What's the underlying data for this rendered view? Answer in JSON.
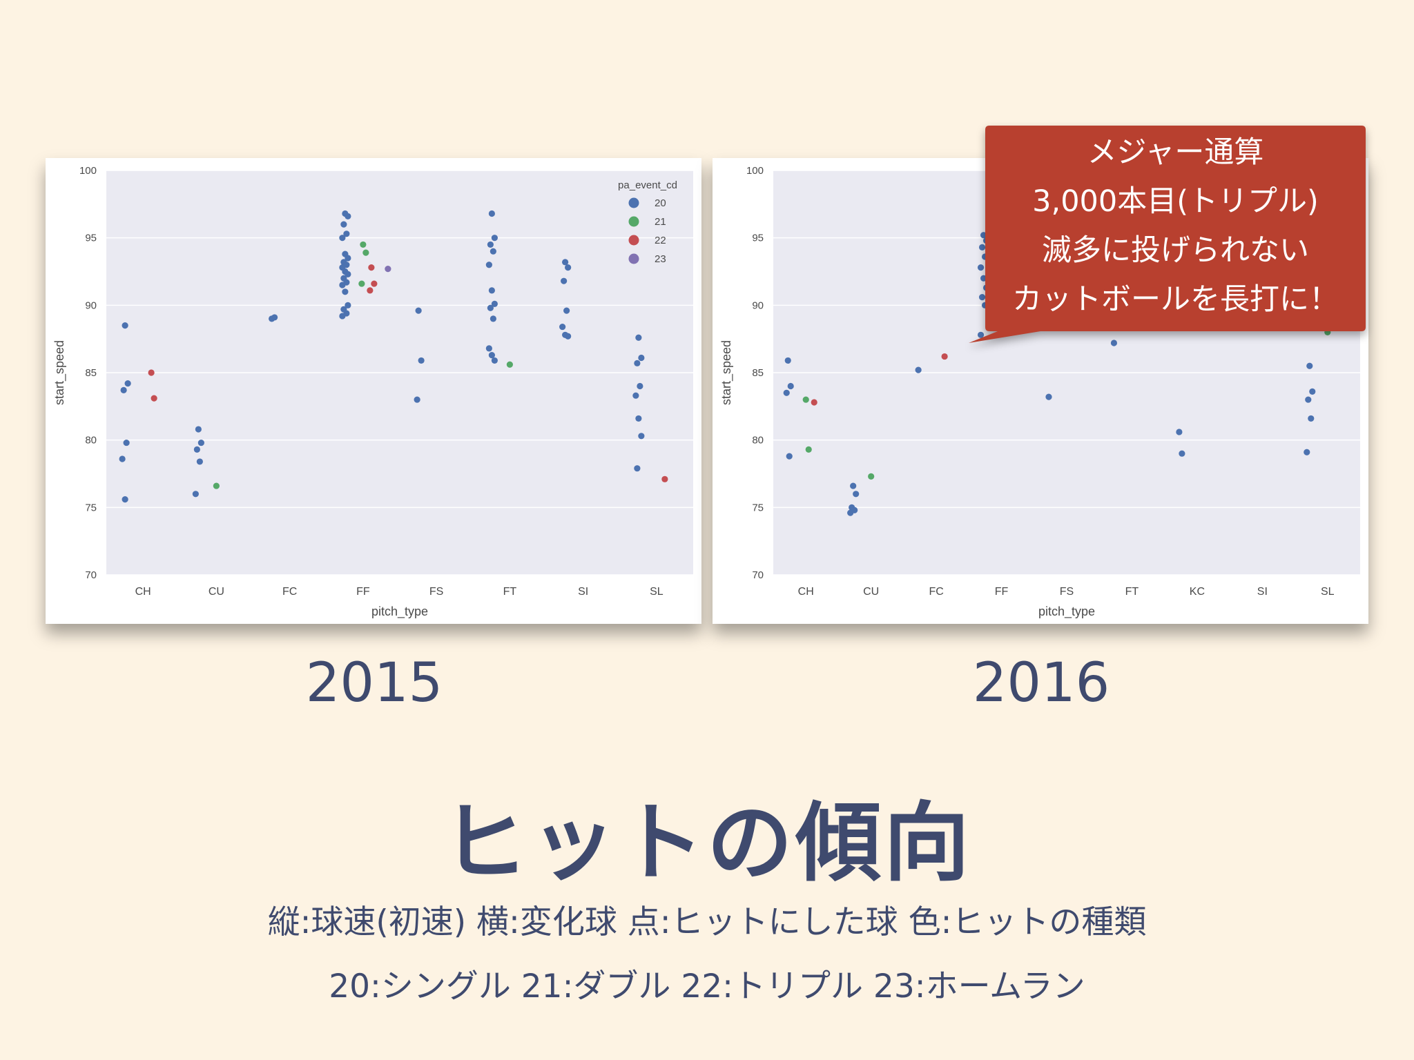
{
  "slide": {
    "title": "ヒットの傾向",
    "note_line1": "縦:球速(初速) 横:変化球 点:ヒットにした球 色:ヒットの種類",
    "note_line2": "20:シングル 21:ダブル 22:トリプル 23:ホームラン",
    "callout_lines": [
      "メジャー通算",
      "3,000本目(トリプル)",
      "滅多に投げられない",
      "カットボールを長打に！"
    ],
    "callout_color": "#b8402f"
  },
  "colors": {
    "20": "#4c72b0",
    "21": "#55a868",
    "22": "#c44e52",
    "23": "#8172b2",
    "plot_bg": "#eaeaf2",
    "grid": "#ffffff"
  },
  "chart_data": [
    {
      "type": "scatter",
      "caption": "2015",
      "xlabel": "pitch_type",
      "ylabel": "start_speed",
      "ylim": [
        70,
        100
      ],
      "yticks": [
        70,
        75,
        80,
        85,
        90,
        95,
        100
      ],
      "categories": [
        "CH",
        "CU",
        "FC",
        "FF",
        "FS",
        "FT",
        "SI",
        "SL"
      ],
      "legend": {
        "title": "pa_event_cd",
        "entries": [
          "20",
          "21",
          "22",
          "23"
        ],
        "placement": "top-right"
      },
      "points": [
        [
          "CH",
          88.5,
          "20"
        ],
        [
          "CH",
          84.2,
          "20"
        ],
        [
          "CH",
          83.7,
          "20"
        ],
        [
          "CH",
          79.8,
          "20"
        ],
        [
          "CH",
          78.6,
          "20"
        ],
        [
          "CH",
          75.6,
          "20"
        ],
        [
          "CH",
          85.0,
          "22"
        ],
        [
          "CH",
          83.1,
          "22"
        ],
        [
          "CU",
          80.8,
          "20"
        ],
        [
          "CU",
          79.8,
          "20"
        ],
        [
          "CU",
          79.3,
          "20"
        ],
        [
          "CU",
          78.4,
          "20"
        ],
        [
          "CU",
          76.0,
          "20"
        ],
        [
          "CU",
          76.6,
          "21"
        ],
        [
          "FC",
          89.0,
          "20"
        ],
        [
          "FC",
          89.1,
          "20"
        ],
        [
          "FF",
          96.8,
          "20"
        ],
        [
          "FF",
          96.6,
          "20"
        ],
        [
          "FF",
          96.0,
          "20"
        ],
        [
          "FF",
          95.3,
          "20"
        ],
        [
          "FF",
          95.0,
          "20"
        ],
        [
          "FF",
          93.8,
          "20"
        ],
        [
          "FF",
          93.5,
          "20"
        ],
        [
          "FF",
          93.2,
          "20"
        ],
        [
          "FF",
          93.0,
          "20"
        ],
        [
          "FF",
          92.8,
          "20"
        ],
        [
          "FF",
          92.5,
          "20"
        ],
        [
          "FF",
          92.3,
          "20"
        ],
        [
          "FF",
          92.0,
          "20"
        ],
        [
          "FF",
          91.7,
          "20"
        ],
        [
          "FF",
          91.5,
          "20"
        ],
        [
          "FF",
          91.0,
          "20"
        ],
        [
          "FF",
          90.0,
          "20"
        ],
        [
          "FF",
          89.7,
          "20"
        ],
        [
          "FF",
          89.4,
          "20"
        ],
        [
          "FF",
          89.2,
          "20"
        ],
        [
          "FF",
          94.5,
          "21"
        ],
        [
          "FF",
          93.9,
          "21"
        ],
        [
          "FF",
          91.6,
          "21"
        ],
        [
          "FF",
          92.8,
          "22"
        ],
        [
          "FF",
          91.6,
          "22"
        ],
        [
          "FF",
          91.1,
          "22"
        ],
        [
          "FF",
          92.7,
          "23"
        ],
        [
          "FS",
          89.6,
          "20"
        ],
        [
          "FS",
          85.9,
          "20"
        ],
        [
          "FS",
          83.0,
          "20"
        ],
        [
          "FT",
          96.8,
          "20"
        ],
        [
          "FT",
          95.0,
          "20"
        ],
        [
          "FT",
          94.5,
          "20"
        ],
        [
          "FT",
          94.0,
          "20"
        ],
        [
          "FT",
          93.0,
          "20"
        ],
        [
          "FT",
          91.1,
          "20"
        ],
        [
          "FT",
          90.1,
          "20"
        ],
        [
          "FT",
          89.8,
          "20"
        ],
        [
          "FT",
          89.0,
          "20"
        ],
        [
          "FT",
          86.8,
          "20"
        ],
        [
          "FT",
          86.3,
          "20"
        ],
        [
          "FT",
          85.9,
          "20"
        ],
        [
          "FT",
          85.6,
          "21"
        ],
        [
          "SI",
          93.2,
          "20"
        ],
        [
          "SI",
          92.8,
          "20"
        ],
        [
          "SI",
          91.8,
          "20"
        ],
        [
          "SI",
          89.6,
          "20"
        ],
        [
          "SI",
          88.4,
          "20"
        ],
        [
          "SI",
          87.8,
          "20"
        ],
        [
          "SI",
          87.7,
          "20"
        ],
        [
          "SL",
          87.6,
          "20"
        ],
        [
          "SL",
          86.1,
          "20"
        ],
        [
          "SL",
          85.7,
          "20"
        ],
        [
          "SL",
          84.0,
          "20"
        ],
        [
          "SL",
          83.3,
          "20"
        ],
        [
          "SL",
          81.6,
          "20"
        ],
        [
          "SL",
          80.3,
          "20"
        ],
        [
          "SL",
          77.9,
          "20"
        ],
        [
          "SL",
          77.1,
          "22"
        ]
      ]
    },
    {
      "type": "scatter",
      "caption": "2016",
      "xlabel": "pitch_type",
      "ylabel": "start_speed",
      "ylim": [
        70,
        100
      ],
      "yticks": [
        70,
        75,
        80,
        85,
        90,
        95,
        100
      ],
      "categories": [
        "CH",
        "CU",
        "FC",
        "FF",
        "FS",
        "FT",
        "KC",
        "SI",
        "SL"
      ],
      "points": [
        [
          "CH",
          85.9,
          "20"
        ],
        [
          "CH",
          84.0,
          "20"
        ],
        [
          "CH",
          83.5,
          "20"
        ],
        [
          "CH",
          78.8,
          "20"
        ],
        [
          "CH",
          83.0,
          "21"
        ],
        [
          "CH",
          79.3,
          "21"
        ],
        [
          "CH",
          82.8,
          "22"
        ],
        [
          "CU",
          76.6,
          "20"
        ],
        [
          "CU",
          76.0,
          "20"
        ],
        [
          "CU",
          75.0,
          "20"
        ],
        [
          "CU",
          74.8,
          "20"
        ],
        [
          "CU",
          74.6,
          "20"
        ],
        [
          "CU",
          77.3,
          "21"
        ],
        [
          "FC",
          85.2,
          "20"
        ],
        [
          "FC",
          86.2,
          "22"
        ],
        [
          "FF",
          95.2,
          "20"
        ],
        [
          "FF",
          94.8,
          "20"
        ],
        [
          "FF",
          94.3,
          "20"
        ],
        [
          "FF",
          93.6,
          "20"
        ],
        [
          "FF",
          92.8,
          "20"
        ],
        [
          "FF",
          92.0,
          "20"
        ],
        [
          "FF",
          91.3,
          "20"
        ],
        [
          "FF",
          90.6,
          "20"
        ],
        [
          "FF",
          90.0,
          "20"
        ],
        [
          "FF",
          87.8,
          "20"
        ],
        [
          "FS",
          83.2,
          "20"
        ],
        [
          "FT",
          87.2,
          "20"
        ],
        [
          "KC",
          80.6,
          "20"
        ],
        [
          "KC",
          79.0,
          "20"
        ],
        [
          "SL",
          85.5,
          "20"
        ],
        [
          "SL",
          83.6,
          "20"
        ],
        [
          "SL",
          83.0,
          "20"
        ],
        [
          "SL",
          81.6,
          "20"
        ],
        [
          "SL",
          79.1,
          "20"
        ],
        [
          "SL",
          88.0,
          "21"
        ]
      ]
    }
  ]
}
